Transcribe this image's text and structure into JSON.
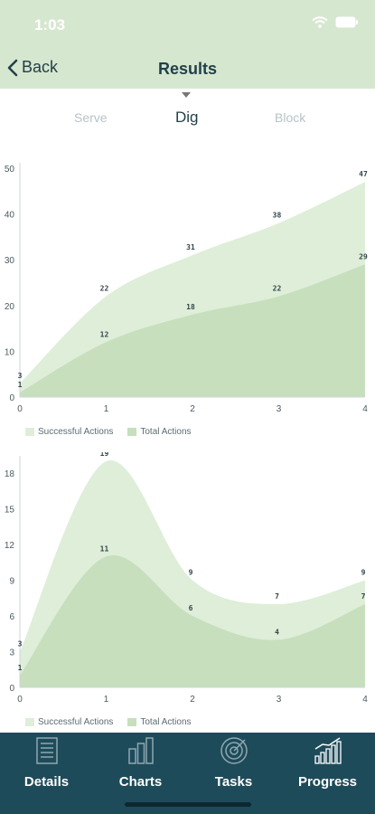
{
  "status_bar": {
    "time": "1:03"
  },
  "nav": {
    "back_label": "Back",
    "title": "Results"
  },
  "segments": [
    {
      "label": "Serve",
      "active": false
    },
    {
      "label": "Dig",
      "active": true
    },
    {
      "label": "Block",
      "active": false
    }
  ],
  "colors": {
    "header_bg": "#d6e7cf",
    "successful_fill": "#deeed8",
    "total_fill": "#c7dfbd",
    "tab_bar_bg": "#1e4b5a",
    "text_dark": "#22404a"
  },
  "chart_data": [
    {
      "type": "area",
      "x": [
        0,
        1,
        2,
        3,
        4
      ],
      "xlim": [
        0,
        4
      ],
      "ylim": [
        0,
        50
      ],
      "yticks": [
        0,
        10,
        20,
        30,
        40,
        50
      ],
      "series": [
        {
          "name": "Successful Actions",
          "values": [
            3,
            22,
            31,
            38,
            47
          ]
        },
        {
          "name": "Total Actions",
          "values": [
            1,
            12,
            18,
            22,
            29
          ]
        }
      ],
      "legend": "bottom-left"
    },
    {
      "type": "area",
      "x": [
        0,
        1,
        2,
        3,
        4
      ],
      "xlim": [
        0,
        4
      ],
      "ylim": [
        0,
        19
      ],
      "yticks": [
        0,
        3,
        6,
        9,
        12,
        15,
        18
      ],
      "series": [
        {
          "name": "Successful Actions",
          "values": [
            3,
            19,
            9,
            7,
            9
          ]
        },
        {
          "name": "Total Actions",
          "values": [
            1,
            11,
            6,
            4,
            7
          ]
        }
      ],
      "legend": "bottom-left"
    }
  ],
  "tabs": [
    {
      "label": "Details",
      "icon": "list-icon"
    },
    {
      "label": "Charts",
      "icon": "bar-chart-icon"
    },
    {
      "label": "Tasks",
      "icon": "target-icon"
    },
    {
      "label": "Progress",
      "icon": "progress-chart-icon"
    }
  ]
}
